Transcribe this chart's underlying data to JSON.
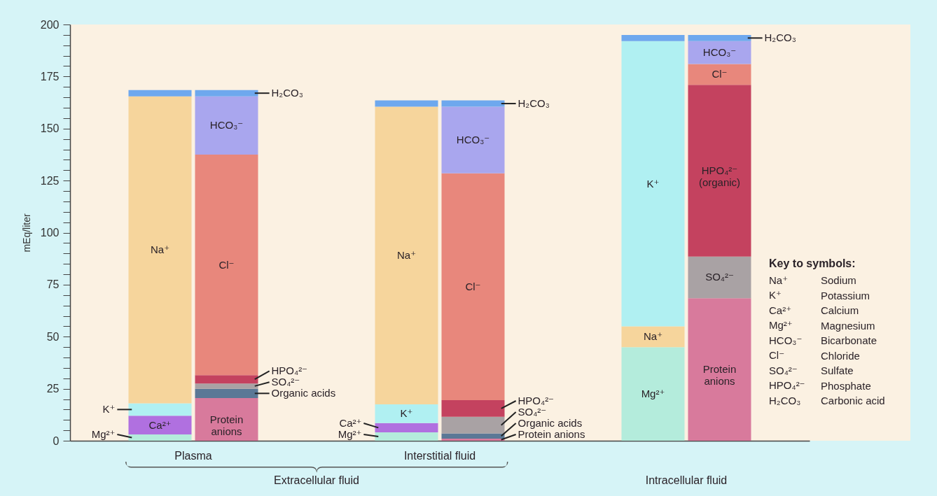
{
  "chart_data": {
    "type": "bar",
    "stacked": true,
    "ylabel": "mEq/liter",
    "tick_labels": "y",
    "categories": [
      null,
      null,
      null,
      null,
      null,
      null
    ],
    "ylim": [
      0,
      200
    ],
    "yticks": [
      0,
      {
        "value": 5,
        "label": null
      },
      {
        "value": 10,
        "label": null
      },
      {
        "value": 15,
        "label": null
      },
      {
        "value": 20,
        "label": null
      },
      25,
      {
        "value": 30,
        "label": null
      },
      {
        "value": 35,
        "label": null
      },
      {
        "value": 40,
        "label": null
      },
      {
        "value": 45,
        "label": null
      },
      50,
      {
        "value": 55,
        "label": null
      },
      {
        "value": 60,
        "label": null
      },
      {
        "value": 65,
        "label": null
      },
      {
        "value": 70,
        "label": null
      },
      75,
      {
        "value": 80,
        "label": null
      },
      {
        "value": 85,
        "label": null
      },
      {
        "value": 90,
        "label": null
      },
      {
        "value": 95,
        "label": null
      },
      100,
      {
        "value": 105,
        "label": null
      },
      {
        "value": 110,
        "label": null
      },
      {
        "value": 115,
        "label": null
      },
      {
        "value": 120,
        "label": null
      },
      125,
      {
        "value": 130,
        "label": null
      },
      {
        "value": 135,
        "label": null
      },
      {
        "value": 140,
        "label": null
      },
      {
        "value": 145,
        "label": null
      },
      150,
      {
        "value": 155,
        "label": null
      },
      {
        "value": 160,
        "label": null
      },
      {
        "value": 165,
        "label": null
      },
      {
        "value": 170,
        "label": null
      },
      175,
      {
        "value": 180,
        "label": null
      },
      {
        "value": 185,
        "label": null
      },
      {
        "value": 190,
        "label": null
      },
      {
        "value": 195,
        "label": null
      },
      200
    ],
    "series": [
      {
        "name": "Mg²⁺",
        "color": "#b4ecdc",
        "values": [
          3,
          null,
          4,
          null,
          45,
          null
        ]
      },
      {
        "name": "Ca²⁺",
        "color": "#b070e0",
        "values": [
          9,
          null,
          4.5,
          null,
          null,
          null
        ]
      },
      {
        "name": "Na⁺",
        "color": "#f6d59c",
        "values": [
          null,
          null,
          null,
          null,
          10,
          null
        ]
      },
      {
        "name": "K⁺",
        "color": "#b0f0f2",
        "values": [
          6,
          null,
          9,
          null,
          137,
          null
        ]
      },
      {
        "name": "Na⁺",
        "color": "#f6d59c",
        "values": [
          147.5,
          null,
          143,
          null,
          null,
          null
        ]
      },
      {
        "name": "Protein anions",
        "color": "#d87a9c",
        "values": [
          null,
          20.5,
          null,
          1,
          null,
          68.5
        ]
      },
      {
        "name": "Organic acids",
        "color": "#5b7896",
        "values": [
          null,
          4.5,
          null,
          2.5,
          null,
          null
        ]
      },
      {
        "name": "SO₄²⁻",
        "color": "#a9a2a4",
        "values": [
          null,
          2.5,
          null,
          8,
          null,
          20
        ]
      },
      {
        "name": "HPO₄²⁻",
        "color": "#c4425f",
        "values": [
          null,
          4,
          null,
          8,
          null,
          null
        ]
      },
      {
        "name": "HPO₄²⁻ (organic)",
        "color": "#c4425f",
        "values": [
          null,
          null,
          null,
          null,
          null,
          82.5
        ]
      },
      {
        "name": "Cl⁻",
        "color": "#e8877c",
        "values": [
          null,
          106,
          null,
          109,
          null,
          10
        ]
      },
      {
        "name": "HCO₃⁻",
        "color": "#a9a6ee",
        "values": [
          null,
          28,
          null,
          32,
          null,
          11
        ]
      },
      {
        "name": "H₂CO₃",
        "color": "#6ea8ee",
        "values": [
          3,
          3,
          3,
          3,
          3,
          3
        ]
      }
    ],
    "annotations": [
      "Plasma",
      "Interstitial fluid",
      "Extracellular fluid",
      "Intracellular fluid",
      "Key to symbols:",
      "Na⁺",
      "Sodium",
      "K⁺",
      "Potassium",
      "Ca²⁺",
      "Calcium",
      "Mg²⁺",
      "Magnesium",
      "HCO₃⁻",
      "Bicarbonate",
      "Cl⁻",
      "Chloride",
      "SO₄²⁻",
      "Sulfate",
      "HPO₄²⁻",
      "Phosphate",
      "H₂CO₃",
      "Carbonic acid"
    ]
  }
}
